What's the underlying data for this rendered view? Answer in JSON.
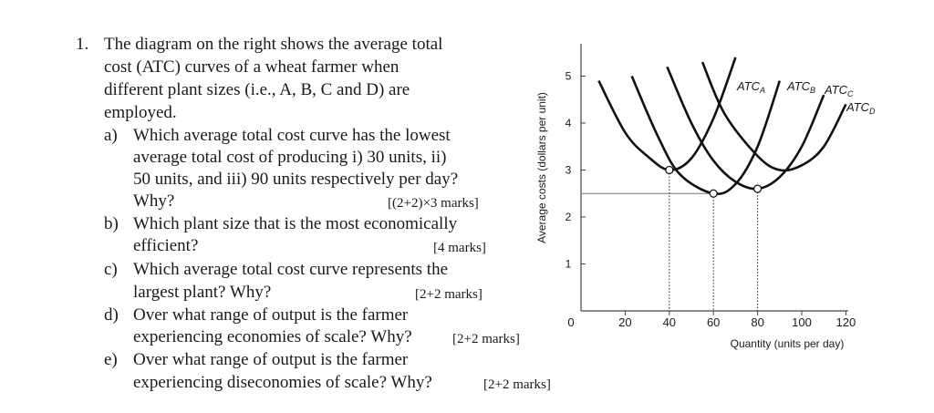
{
  "question": {
    "number": "1.",
    "intro": [
      "The diagram on the right shows the average total",
      "cost (ATC) curves of a wheat farmer when",
      "different plant sizes (i.e., A, B, C and D) are",
      "employed."
    ],
    "parts": [
      {
        "label": "a)",
        "lines": [
          "Which average total cost curve has the lowest",
          "average total cost of producing i) 30 units, ii)",
          "50 units, and iii) 90 units respectively per day?",
          "Why?"
        ],
        "marks": "[(2+2)×3 marks]"
      },
      {
        "label": "b)",
        "lines": [
          "Which plant size that is the most economically",
          "efficient?"
        ],
        "marks": "[4 marks]"
      },
      {
        "label": "c)",
        "lines": [
          "Which average total cost curve represents the",
          "largest plant? Why?"
        ],
        "marks": "[2+2 marks]"
      },
      {
        "label": "d)",
        "lines": [
          "Over what range of output is the farmer",
          "experiencing economies of scale? Why?"
        ],
        "marks": "[2+2 marks]"
      },
      {
        "label": "e)",
        "lines": [
          "Over what range of output is the farmer",
          "experiencing diseconomies of scale? Why?"
        ],
        "marks": "[2+2 marks]"
      }
    ]
  },
  "chart": {
    "ylabel": "Average costs (dollars per unit)",
    "xlabel": "Quantity (units per day)",
    "origin_label": "0",
    "x_ticks": [
      "20",
      "40",
      "60",
      "80",
      "100",
      "120"
    ],
    "y_ticks": [
      "1",
      "2",
      "3",
      "4",
      "5"
    ],
    "curves": [
      {
        "name": "ATC",
        "sub": "A"
      },
      {
        "name": "ATC",
        "sub": "B"
      },
      {
        "name": "ATC",
        "sub": "C"
      },
      {
        "name": "ATC",
        "sub": "D"
      }
    ]
  },
  "chart_data": {
    "type": "line",
    "xlim": [
      0,
      120
    ],
    "ylim": [
      0,
      5.5
    ],
    "series": [
      {
        "name": "ATC A",
        "points": [
          [
            8,
            4.9
          ],
          [
            20,
            3.8
          ],
          [
            30,
            3.3
          ],
          [
            40,
            3.0
          ],
          [
            50,
            3.25
          ],
          [
            60,
            4.1
          ],
          [
            70,
            5.4
          ]
        ]
      },
      {
        "name": "ATC B",
        "points": [
          [
            23,
            5.0
          ],
          [
            35,
            3.7
          ],
          [
            45,
            2.9
          ],
          [
            60,
            2.5
          ],
          [
            70,
            2.7
          ],
          [
            80,
            3.5
          ],
          [
            90,
            4.9
          ]
        ]
      },
      {
        "name": "ATC C",
        "points": [
          [
            39,
            5.2
          ],
          [
            50,
            4.0
          ],
          [
            60,
            3.2
          ],
          [
            70,
            2.75
          ],
          [
            80,
            2.6
          ],
          [
            90,
            2.85
          ],
          [
            100,
            3.5
          ],
          [
            110,
            4.6
          ]
        ]
      },
      {
        "name": "ATC D",
        "points": [
          [
            55,
            5.3
          ],
          [
            65,
            4.2
          ],
          [
            80,
            3.3
          ],
          [
            90,
            3.0
          ],
          [
            100,
            3.1
          ],
          [
            110,
            3.5
          ],
          [
            120,
            4.4
          ]
        ]
      }
    ],
    "markers": [
      [
        40,
        3.0
      ],
      [
        60,
        2.5
      ],
      [
        80,
        2.6
      ]
    ],
    "reference_line_y": 2.5,
    "dotted_verticals_x": [
      40,
      60,
      80
    ]
  }
}
